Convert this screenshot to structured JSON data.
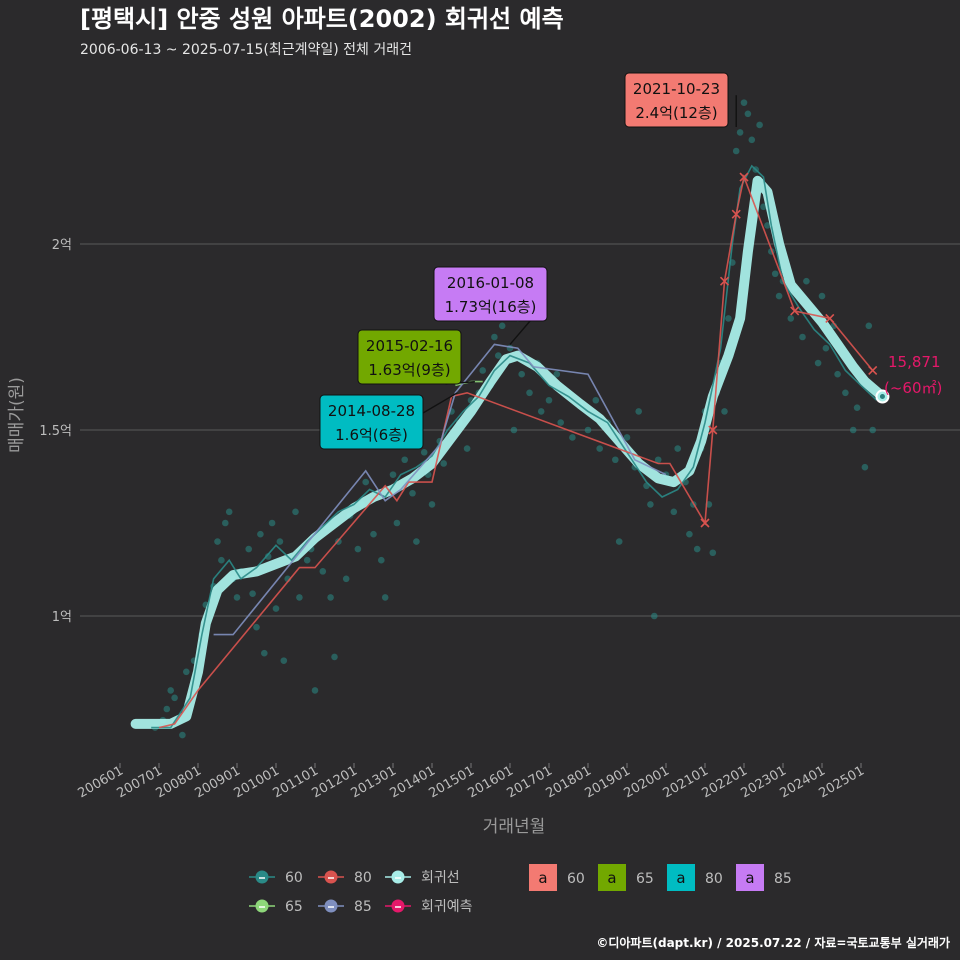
{
  "header": {
    "title": "[평택시] 안중 성원 아파트(2002) 회귀선 예측",
    "subtitle": "2006-06-13 ~ 2025-07-15(최근계약일) 전체 거래건"
  },
  "credit": "©디아파트(dapt.kr) / 2025.07.22 / 자료=국토교통부 실거래가",
  "chart_data": {
    "type": "scatter",
    "xlabel": "거래년월",
    "ylabel": "매매가(원)",
    "x_range": [
      "2006-01",
      "2025-12"
    ],
    "ylim": [
      0.6,
      2.45
    ],
    "y_unit": "억",
    "grid": "horizontal",
    "x_ticks": [
      "200601",
      "200701",
      "200801",
      "200901",
      "201001",
      "201101",
      "201201",
      "201301",
      "201401",
      "201501",
      "201601",
      "201701",
      "201801",
      "201901",
      "202001",
      "202101",
      "202201",
      "202301",
      "202401",
      "202501"
    ],
    "y_ticks": [
      {
        "value": 1.0,
        "label": "1억"
      },
      {
        "value": 1.5,
        "label": "1.5억"
      },
      {
        "value": 2.0,
        "label": "2억"
      }
    ],
    "colors": {
      "s60": "#2a8a87",
      "s65": "#8ed67a",
      "s80": "#d9534f",
      "s85": "#7f8fbf",
      "regression": "#a8ede8",
      "prediction": "#e5186a",
      "box60": "#f37a72",
      "box65": "#72a800",
      "box80": "#00bcc2",
      "box85": "#c67bf4"
    },
    "regression_line": [
      [
        2006.4,
        0.71
      ],
      [
        2006.9,
        0.71
      ],
      [
        2007.3,
        0.71
      ],
      [
        2007.7,
        0.73
      ],
      [
        2008.0,
        0.85
      ],
      [
        2008.2,
        0.98
      ],
      [
        2008.5,
        1.07
      ],
      [
        2008.9,
        1.11
      ],
      [
        2009.5,
        1.12
      ],
      [
        2010.0,
        1.14
      ],
      [
        2010.5,
        1.16
      ],
      [
        2011.0,
        1.21
      ],
      [
        2011.5,
        1.25
      ],
      [
        2012.0,
        1.29
      ],
      [
        2012.5,
        1.32
      ],
      [
        2013.0,
        1.34
      ],
      [
        2013.5,
        1.37
      ],
      [
        2014.0,
        1.41
      ],
      [
        2014.5,
        1.48
      ],
      [
        2015.0,
        1.55
      ],
      [
        2015.5,
        1.63
      ],
      [
        2015.9,
        1.69
      ],
      [
        2016.2,
        1.7
      ],
      [
        2016.7,
        1.67
      ],
      [
        2017.2,
        1.62
      ],
      [
        2017.8,
        1.57
      ],
      [
        2018.3,
        1.53
      ],
      [
        2018.8,
        1.47
      ],
      [
        2019.3,
        1.41
      ],
      [
        2019.8,
        1.37
      ],
      [
        2020.2,
        1.36
      ],
      [
        2020.6,
        1.39
      ],
      [
        2020.9,
        1.47
      ],
      [
        2021.2,
        1.59
      ],
      [
        2021.6,
        1.7
      ],
      [
        2021.9,
        1.8
      ],
      [
        2022.1,
        1.98
      ],
      [
        2022.35,
        2.17
      ],
      [
        2022.6,
        2.14
      ],
      [
        2022.9,
        2.0
      ],
      [
        2023.2,
        1.89
      ],
      [
        2023.6,
        1.84
      ],
      [
        2024.0,
        1.79
      ],
      [
        2024.4,
        1.73
      ],
      [
        2024.8,
        1.67
      ],
      [
        2025.1,
        1.63
      ],
      [
        2025.55,
        1.59
      ]
    ],
    "series": [
      {
        "name": "60",
        "line": [
          [
            2006.8,
            0.7
          ],
          [
            2007.3,
            0.7
          ],
          [
            2007.8,
            0.78
          ],
          [
            2008.1,
            0.95
          ],
          [
            2008.4,
            1.1
          ],
          [
            2008.8,
            1.15
          ],
          [
            2009.1,
            1.1
          ],
          [
            2009.5,
            1.13
          ],
          [
            2010.0,
            1.19
          ],
          [
            2010.4,
            1.15
          ],
          [
            2010.8,
            1.2
          ],
          [
            2011.2,
            1.24
          ],
          [
            2011.6,
            1.28
          ],
          [
            2012.0,
            1.3
          ],
          [
            2012.4,
            1.34
          ],
          [
            2012.8,
            1.32
          ],
          [
            2013.2,
            1.38
          ],
          [
            2013.6,
            1.4
          ],
          [
            2014.0,
            1.43
          ],
          [
            2014.4,
            1.5
          ],
          [
            2014.8,
            1.55
          ],
          [
            2015.2,
            1.59
          ],
          [
            2015.6,
            1.66
          ],
          [
            2016.0,
            1.7
          ],
          [
            2016.5,
            1.68
          ],
          [
            2017.0,
            1.62
          ],
          [
            2017.5,
            1.59
          ],
          [
            2018.0,
            1.55
          ],
          [
            2018.5,
            1.52
          ],
          [
            2019.0,
            1.44
          ],
          [
            2019.5,
            1.36
          ],
          [
            2019.9,
            1.32
          ],
          [
            2020.3,
            1.34
          ],
          [
            2020.7,
            1.4
          ],
          [
            2021.0,
            1.52
          ],
          [
            2021.4,
            1.72
          ],
          [
            2021.7,
            2.0
          ],
          [
            2021.9,
            2.15
          ],
          [
            2022.2,
            2.21
          ],
          [
            2022.5,
            2.18
          ],
          [
            2022.7,
            2.05
          ],
          [
            2023.0,
            1.9
          ],
          [
            2023.4,
            1.83
          ],
          [
            2023.8,
            1.77
          ],
          [
            2024.2,
            1.73
          ],
          [
            2024.6,
            1.66
          ],
          [
            2025.0,
            1.62
          ],
          [
            2025.4,
            1.58
          ]
        ]
      },
      {
        "name": "65",
        "line": [
          [
            2014.6,
            1.62
          ],
          [
            2015.0,
            1.63
          ],
          [
            2015.3,
            1.63
          ]
        ]
      },
      {
        "name": "80",
        "line": [
          [
            2007.0,
            0.7
          ],
          [
            2007.4,
            0.71
          ],
          [
            2008.0,
            0.8
          ],
          [
            2010.6,
            1.13
          ],
          [
            2011.0,
            1.13
          ],
          [
            2012.8,
            1.35
          ],
          [
            2013.1,
            1.31
          ],
          [
            2013.4,
            1.36
          ],
          [
            2014.0,
            1.36
          ],
          [
            2014.5,
            1.59
          ],
          [
            2014.9,
            1.6
          ],
          [
            2019.8,
            1.41
          ],
          [
            2020.1,
            1.41
          ],
          [
            2021.0,
            1.25
          ],
          [
            2021.2,
            1.5
          ],
          [
            2021.5,
            1.9
          ],
          [
            2021.8,
            2.08
          ],
          [
            2022.0,
            2.18
          ],
          [
            2023.3,
            1.82
          ],
          [
            2024.2,
            1.8
          ],
          [
            2025.3,
            1.66
          ]
        ]
      },
      {
        "name": "85",
        "line": [
          [
            2008.4,
            0.95
          ],
          [
            2008.9,
            0.95
          ],
          [
            2012.3,
            1.39
          ],
          [
            2012.8,
            1.31
          ],
          [
            2013.2,
            1.34
          ],
          [
            2014.2,
            1.46
          ],
          [
            2014.6,
            1.6
          ],
          [
            2015.6,
            1.73
          ],
          [
            2016.2,
            1.72
          ],
          [
            2016.6,
            1.67
          ],
          [
            2018.0,
            1.65
          ],
          [
            2019.2,
            1.42
          ],
          [
            2020.0,
            1.38
          ]
        ]
      }
    ],
    "points60": [
      [
        2006.9,
        0.7
      ],
      [
        2007.1,
        0.72
      ],
      [
        2007.2,
        0.75
      ],
      [
        2007.3,
        0.8
      ],
      [
        2007.4,
        0.78
      ],
      [
        2007.5,
        0.72
      ],
      [
        2007.6,
        0.68
      ],
      [
        2007.7,
        0.85
      ],
      [
        2007.9,
        0.88
      ],
      [
        2008.1,
        0.95
      ],
      [
        2008.2,
        1.03
      ],
      [
        2008.4,
        1.08
      ],
      [
        2008.5,
        1.2
      ],
      [
        2008.6,
        1.15
      ],
      [
        2008.7,
        1.25
      ],
      [
        2008.8,
        1.28
      ],
      [
        2008.9,
        1.1
      ],
      [
        2009.0,
        1.05
      ],
      [
        2009.1,
        1.12
      ],
      [
        2009.3,
        1.18
      ],
      [
        2009.4,
        1.06
      ],
      [
        2009.5,
        0.97
      ],
      [
        2009.6,
        1.22
      ],
      [
        2009.7,
        0.9
      ],
      [
        2009.8,
        1.16
      ],
      [
        2009.9,
        1.25
      ],
      [
        2010.0,
        1.02
      ],
      [
        2010.1,
        1.2
      ],
      [
        2010.2,
        0.88
      ],
      [
        2010.3,
        1.1
      ],
      [
        2010.5,
        1.28
      ],
      [
        2010.6,
        1.05
      ],
      [
        2010.8,
        1.15
      ],
      [
        2010.9,
        1.18
      ],
      [
        2011.0,
        0.8
      ],
      [
        2011.2,
        1.12
      ],
      [
        2011.3,
        1.24
      ],
      [
        2011.4,
        1.05
      ],
      [
        2011.5,
        0.89
      ],
      [
        2011.6,
        1.2
      ],
      [
        2011.8,
        1.1
      ],
      [
        2011.9,
        1.27
      ],
      [
        2012.1,
        1.18
      ],
      [
        2012.2,
        1.3
      ],
      [
        2012.3,
        1.36
      ],
      [
        2012.5,
        1.22
      ],
      [
        2012.7,
        1.15
      ],
      [
        2012.8,
        1.05
      ],
      [
        2013.0,
        1.38
      ],
      [
        2013.1,
        1.25
      ],
      [
        2013.3,
        1.42
      ],
      [
        2013.5,
        1.33
      ],
      [
        2013.6,
        1.2
      ],
      [
        2013.8,
        1.44
      ],
      [
        2013.9,
        1.38
      ],
      [
        2014.0,
        1.3
      ],
      [
        2014.2,
        1.47
      ],
      [
        2014.3,
        1.41
      ],
      [
        2014.5,
        1.55
      ],
      [
        2014.7,
        1.52
      ],
      [
        2014.9,
        1.45
      ],
      [
        2015.0,
        1.58
      ],
      [
        2015.2,
        1.6
      ],
      [
        2015.3,
        1.66
      ],
      [
        2015.5,
        1.62
      ],
      [
        2015.6,
        1.75
      ],
      [
        2015.7,
        1.7
      ],
      [
        2015.8,
        1.78
      ],
      [
        2016.0,
        1.72
      ],
      [
        2016.1,
        1.5
      ],
      [
        2016.2,
        1.8
      ],
      [
        2016.3,
        1.65
      ],
      [
        2016.5,
        1.6
      ],
      [
        2016.7,
        1.68
      ],
      [
        2016.8,
        1.55
      ],
      [
        2017.0,
        1.58
      ],
      [
        2017.2,
        1.65
      ],
      [
        2017.3,
        1.52
      ],
      [
        2017.5,
        1.6
      ],
      [
        2017.6,
        1.48
      ],
      [
        2017.8,
        1.57
      ],
      [
        2018.0,
        1.5
      ],
      [
        2018.2,
        1.58
      ],
      [
        2018.3,
        1.45
      ],
      [
        2018.5,
        1.52
      ],
      [
        2018.7,
        1.42
      ],
      [
        2018.8,
        1.2
      ],
      [
        2019.0,
        1.48
      ],
      [
        2019.2,
        1.4
      ],
      [
        2019.3,
        1.55
      ],
      [
        2019.5,
        1.35
      ],
      [
        2019.6,
        1.3
      ],
      [
        2019.7,
        1.0
      ],
      [
        2019.8,
        1.42
      ],
      [
        2020.0,
        1.38
      ],
      [
        2020.2,
        1.28
      ],
      [
        2020.3,
        1.45
      ],
      [
        2020.5,
        1.36
      ],
      [
        2020.6,
        1.22
      ],
      [
        2020.7,
        1.3
      ],
      [
        2020.8,
        1.18
      ],
      [
        2020.9,
        1.45
      ],
      [
        2021.0,
        1.55
      ],
      [
        2021.1,
        1.3
      ],
      [
        2021.2,
        1.17
      ],
      [
        2021.3,
        1.6
      ],
      [
        2021.4,
        1.68
      ],
      [
        2021.5,
        1.55
      ],
      [
        2021.6,
        1.8
      ],
      [
        2021.7,
        1.95
      ],
      [
        2021.8,
        2.25
      ],
      [
        2021.9,
        2.3
      ],
      [
        2022.0,
        2.38
      ],
      [
        2022.1,
        2.35
      ],
      [
        2022.2,
        2.28
      ],
      [
        2022.3,
        2.2
      ],
      [
        2022.4,
        2.32
      ],
      [
        2022.5,
        2.1
      ],
      [
        2022.6,
        2.05
      ],
      [
        2022.7,
        1.98
      ],
      [
        2022.8,
        1.92
      ],
      [
        2022.9,
        1.86
      ],
      [
        2023.0,
        1.9
      ],
      [
        2023.2,
        1.8
      ],
      [
        2023.3,
        1.88
      ],
      [
        2023.5,
        1.75
      ],
      [
        2023.6,
        1.9
      ],
      [
        2023.8,
        1.82
      ],
      [
        2023.9,
        1.68
      ],
      [
        2024.0,
        1.86
      ],
      [
        2024.1,
        1.72
      ],
      [
        2024.3,
        1.78
      ],
      [
        2024.4,
        1.65
      ],
      [
        2024.6,
        1.6
      ],
      [
        2024.8,
        1.5
      ],
      [
        2024.9,
        1.56
      ],
      [
        2025.1,
        1.4
      ],
      [
        2025.2,
        1.78
      ],
      [
        2025.3,
        1.5
      ]
    ],
    "callouts": [
      {
        "label": "2021-10-23",
        "value": "2.4억(12층)",
        "series": "60",
        "point": [
          2021.8,
          2.4
        ]
      },
      {
        "label": "2016-01-08",
        "value": "1.73억(16층)",
        "series": "85",
        "point": [
          2016.0,
          1.73
        ]
      },
      {
        "label": "2015-02-16",
        "value": "1.63억(9층)",
        "series": "65",
        "point": [
          2015.1,
          1.63
        ]
      },
      {
        "label": "2014-08-28",
        "value": "1.6억(6층)",
        "series": "80",
        "point": [
          2014.65,
          1.6
        ]
      }
    ],
    "prediction": {
      "point": [
        2025.55,
        1.59
      ],
      "value": "15,871",
      "area": "(~60㎡)"
    },
    "legend": {
      "placement": "bottom",
      "items": [
        {
          "key": "60",
          "label": "60"
        },
        {
          "key": "80",
          "label": "80"
        },
        {
          "key": "regression",
          "label": "회귀선"
        },
        {
          "key": "65",
          "label": "65"
        },
        {
          "key": "85",
          "label": "85"
        },
        {
          "key": "prediction",
          "label": "회귀예측"
        }
      ],
      "boxes": [
        {
          "key": "box60",
          "glyph": "a",
          "label": "60"
        },
        {
          "key": "box65",
          "glyph": "a",
          "label": "65"
        },
        {
          "key": "box80",
          "glyph": "a",
          "label": "80"
        },
        {
          "key": "box85",
          "glyph": "a",
          "label": "85"
        }
      ]
    }
  }
}
